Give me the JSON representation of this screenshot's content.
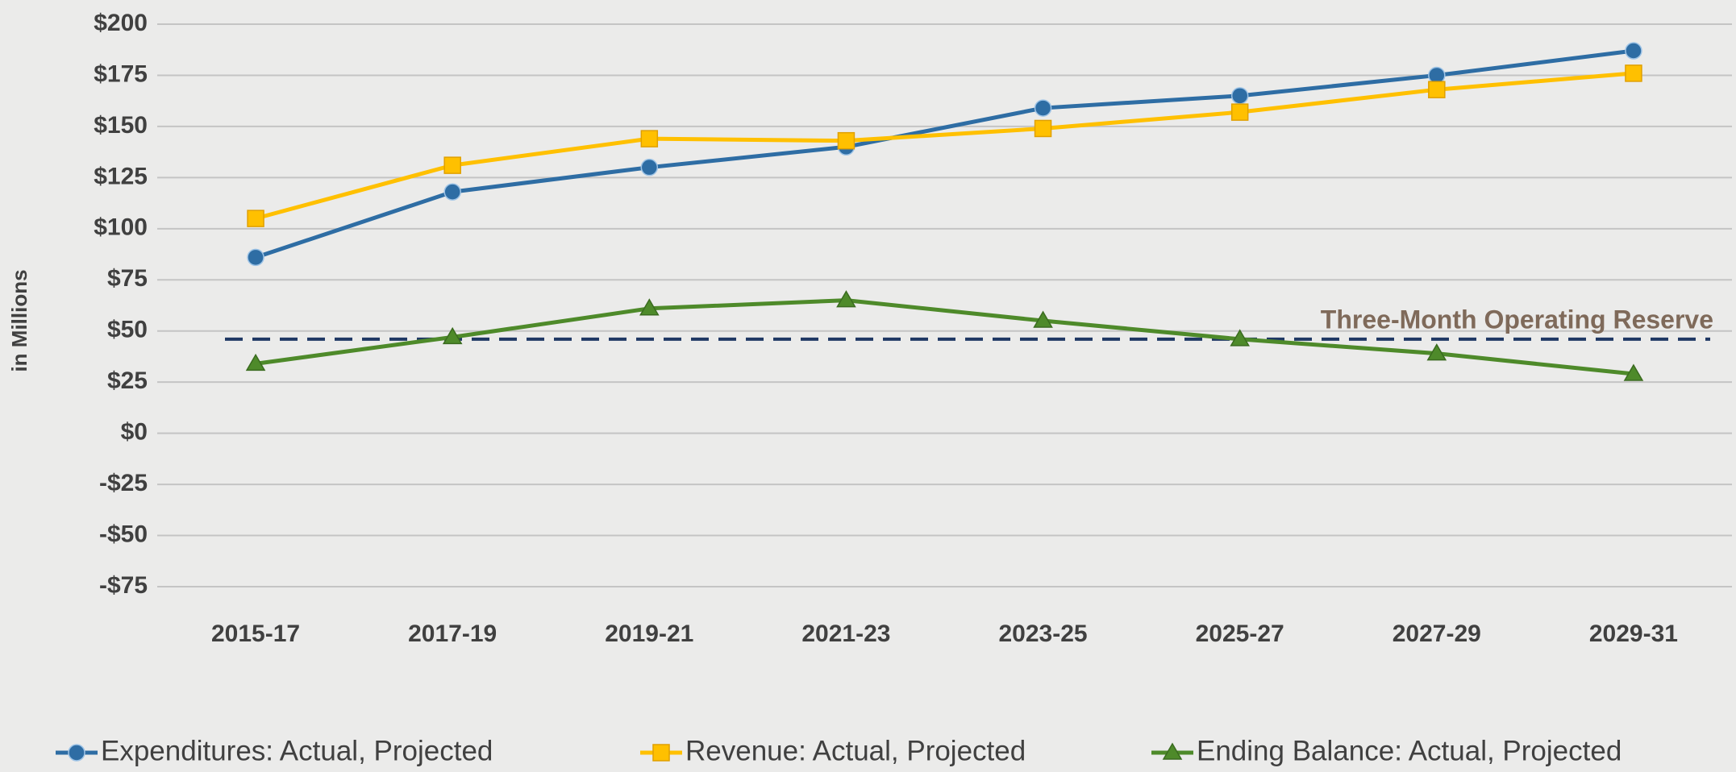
{
  "chart_data": {
    "type": "line",
    "y_label": "in Millions",
    "categories": [
      "2015-17",
      "2017-19",
      "2019-21",
      "2021-23",
      "2023-25",
      "2025-27",
      "2027-29",
      "2029-31"
    ],
    "series": [
      {
        "name": "Expenditures: Actual, Projected",
        "color": "#2e6da4",
        "marker": "circle",
        "values": [
          86,
          118,
          130,
          140,
          159,
          165,
          175,
          187
        ]
      },
      {
        "name": "Revenue: Actual, Projected",
        "color": "#ffc000",
        "marker": "square",
        "values": [
          105,
          131,
          144,
          143,
          149,
          157,
          168,
          176
        ]
      },
      {
        "name": "Ending Balance: Actual, Projected",
        "color": "#4e8a2a",
        "marker": "triangle",
        "values": [
          34,
          47,
          61,
          65,
          55,
          46,
          39,
          29
        ]
      }
    ],
    "reserve": {
      "label": "Three-Month Operating Reserve",
      "value": 46,
      "color": "#1f3864",
      "label_color": "#7f6a5a"
    },
    "ylim": [
      -75,
      200
    ],
    "yticks": [
      {
        "value": -75,
        "label": "-$75"
      },
      {
        "value": -50,
        "label": "-$50"
      },
      {
        "value": -25,
        "label": "-$25"
      },
      {
        "value": 0,
        "label": "$0"
      },
      {
        "value": 25,
        "label": "$25"
      },
      {
        "value": 50,
        "label": "$50"
      },
      {
        "value": 75,
        "label": "$75"
      },
      {
        "value": 100,
        "label": "$100"
      },
      {
        "value": 125,
        "label": "$125"
      },
      {
        "value": 150,
        "label": "$150"
      },
      {
        "value": 175,
        "label": "$175"
      },
      {
        "value": 200,
        "label": "$200"
      }
    ],
    "grid": true,
    "legend": "bottom"
  }
}
